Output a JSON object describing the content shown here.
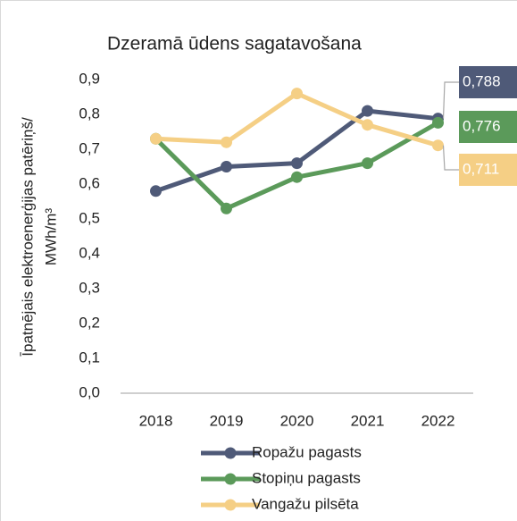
{
  "chart_data": {
    "type": "line",
    "title": "Dzeramā ūdens sagatavošana",
    "ylabel": [
      "Īpatnējais elektroenerģijas patēriņš/",
      "MWh/m³"
    ],
    "categories": [
      "2018",
      "2019",
      "2020",
      "2021",
      "2022"
    ],
    "series": [
      {
        "name": "Ropažu pagasts",
        "color": "#4f5a78",
        "values": [
          0.58,
          0.65,
          0.66,
          0.81,
          0.788
        ],
        "value_labels": [
          null,
          null,
          null,
          null,
          "0,788"
        ]
      },
      {
        "name": "Stopiņu pagasts",
        "color": "#5b9a5a",
        "values": [
          0.73,
          0.53,
          0.62,
          0.66,
          0.776
        ],
        "value_labels": [
          null,
          null,
          null,
          null,
          "0,776"
        ]
      },
      {
        "name": "Vangažu pilsēta",
        "color": "#f5cf85",
        "values": [
          0.73,
          0.72,
          0.86,
          0.77,
          0.711
        ],
        "value_labels": [
          null,
          null,
          null,
          null,
          "0,711"
        ]
      }
    ],
    "ylim": [
      0,
      0.9
    ],
    "yticks": [
      {
        "value": 0,
        "label": "0,0"
      },
      {
        "value": 0.1,
        "label": "0,1"
      },
      {
        "value": 0.2,
        "label": "0,2"
      },
      {
        "value": 0.3,
        "label": "0,3"
      },
      {
        "value": 0.4,
        "label": "0,4"
      },
      {
        "value": 0.5,
        "label": "0,5"
      },
      {
        "value": 0.6,
        "label": "0,6"
      },
      {
        "value": 0.7,
        "label": "0,7"
      },
      {
        "value": 0.8,
        "label": "0,8"
      },
      {
        "value": 0.9,
        "label": "0,9"
      }
    ],
    "grid": false,
    "legend": "bottom"
  }
}
